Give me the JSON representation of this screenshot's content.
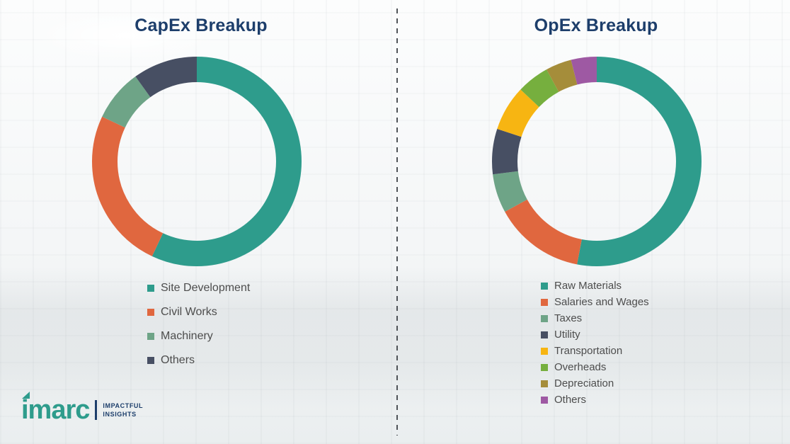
{
  "chart_data": [
    {
      "type": "pie",
      "subtype": "donut",
      "title": "CapEx Breakup",
      "categories": [
        "Site Development",
        "Civil Works",
        "Machinery",
        "Others"
      ],
      "values": [
        57,
        25,
        8,
        10
      ],
      "colors": [
        "#2e9c8c",
        "#e0673f",
        "#6ea487",
        "#474f63"
      ],
      "units": "percent (estimated from arc angles)",
      "legend_position": "bottom-left",
      "start_angle_deg": 0,
      "direction": "clockwise"
    },
    {
      "type": "pie",
      "subtype": "donut",
      "title": "OpEx Breakup",
      "categories": [
        "Raw Materials",
        "Salaries and Wages",
        "Taxes",
        "Utility",
        "Transportation",
        "Overheads",
        "Depreciation",
        "Others"
      ],
      "values": [
        53,
        14,
        6,
        7,
        7,
        5,
        4,
        4
      ],
      "colors": [
        "#2e9c8c",
        "#e0673f",
        "#6ea487",
        "#474f63",
        "#f7b512",
        "#76af3e",
        "#a58d3a",
        "#9e59a3"
      ],
      "units": "percent (estimated from arc angles)",
      "legend_position": "bottom-left",
      "start_angle_deg": 0,
      "direction": "clockwise"
    }
  ],
  "logo": {
    "brand": "imarc",
    "tagline": [
      "IMPACTFUL",
      "INSIGHTS"
    ]
  },
  "styles": {
    "title_color": "#1d3e6b",
    "legend_text_color": "#4d4d4d",
    "accent_teal": "#2e9c8c"
  }
}
